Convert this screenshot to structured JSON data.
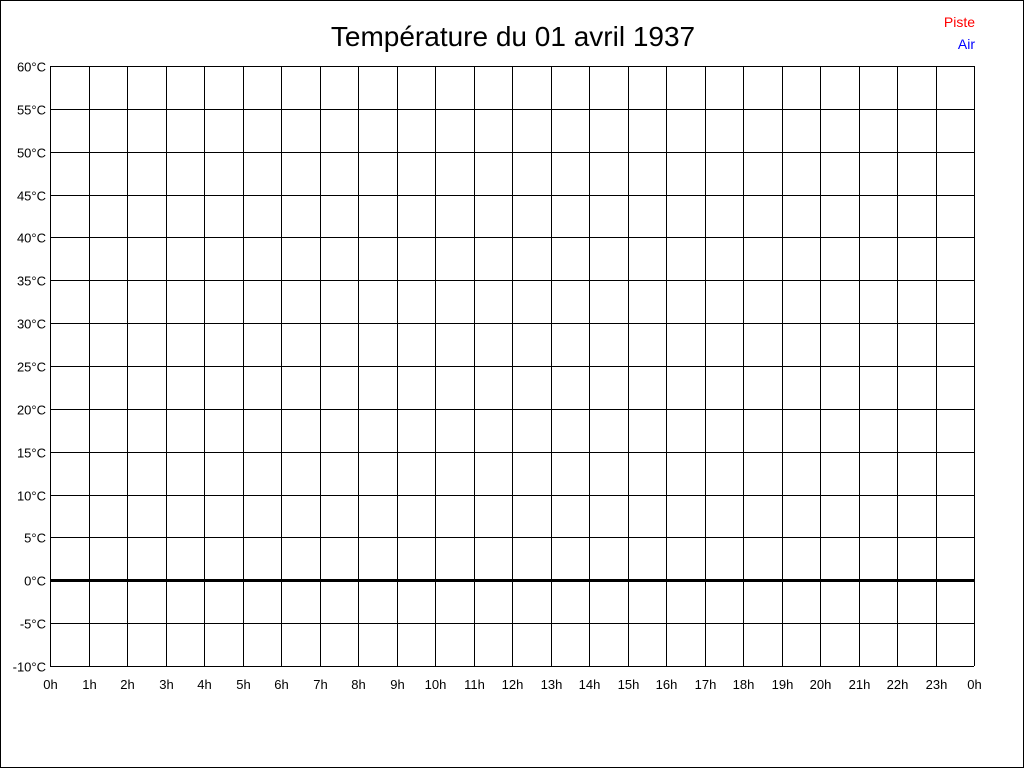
{
  "chart_data": {
    "type": "line",
    "title": "Température du 01 avril 1937",
    "xlabel": "",
    "ylabel": "",
    "ylim": [
      -10,
      60
    ],
    "y_ticks": [
      "-10°C",
      "-5°C",
      "0°C",
      "5°C",
      "10°C",
      "15°C",
      "20°C",
      "25°C",
      "30°C",
      "35°C",
      "40°C",
      "45°C",
      "50°C",
      "55°C",
      "60°C"
    ],
    "y_tick_values": [
      -10,
      -5,
      0,
      5,
      10,
      15,
      20,
      25,
      30,
      35,
      40,
      45,
      50,
      55,
      60
    ],
    "x_ticks": [
      "0h",
      "1h",
      "2h",
      "3h",
      "4h",
      "5h",
      "6h",
      "7h",
      "8h",
      "9h",
      "10h",
      "11h",
      "12h",
      "13h",
      "14h",
      "15h",
      "16h",
      "17h",
      "18h",
      "19h",
      "20h",
      "21h",
      "22h",
      "23h",
      "0h"
    ],
    "grid": true,
    "legend_placement": "top-right",
    "series": [
      {
        "name": "Piste",
        "color": "#ff0000",
        "x": [],
        "values": []
      },
      {
        "name": "Air",
        "color": "#0000ff",
        "x": [],
        "values": []
      }
    ]
  }
}
